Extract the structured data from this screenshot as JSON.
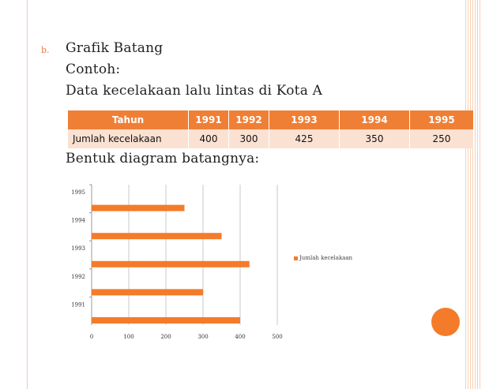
{
  "slide": {
    "bullet": "b.",
    "lines": [
      "Grafik Batang",
      "Contoh:",
      "Data kecelakaan lalu lintas di Kota A",
      "Bentuk diagram batangnya:"
    ]
  },
  "table": {
    "header": [
      "Tahun",
      "1991",
      "1992",
      "1993",
      "1994",
      "1995"
    ],
    "row": [
      "Jumlah kecelakaan",
      "400",
      "300",
      "425",
      "350",
      "250"
    ]
  },
  "chart_data": {
    "type": "bar",
    "orientation": "horizontal",
    "categories": [
      "1991",
      "1992",
      "1993",
      "1994",
      "1995"
    ],
    "series": [
      {
        "name": "Jumlah kecelakaan",
        "values": [
          400,
          300,
          425,
          350,
          250
        ],
        "color": "#f47b2a"
      }
    ],
    "xlim": [
      0,
      500
    ],
    "xticks": [
      "0",
      "100",
      "200",
      "300",
      "400",
      "500"
    ],
    "grid": true,
    "legend": "right"
  }
}
